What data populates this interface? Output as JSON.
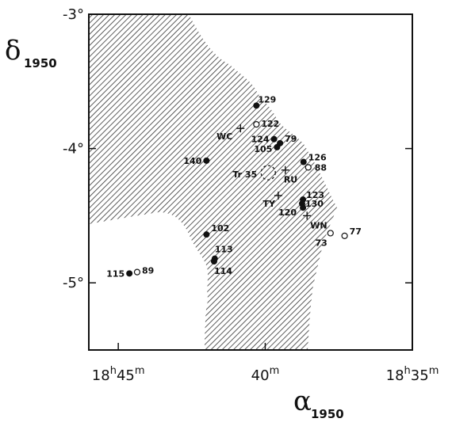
{
  "chart_data": {
    "type": "scatter",
    "xlabel": {
      "symbol": "α",
      "sub": "1950"
    },
    "ylabel": {
      "symbol": "δ",
      "sub": "1950"
    },
    "xlim": [
      18.7667,
      18.5833
    ],
    "ylim": [
      -5.5,
      -3.0
    ],
    "x_ticks": [
      {
        "value": 18.75,
        "h": "18",
        "hsup": "h",
        "m": "45",
        "msup": "m"
      },
      {
        "value": 18.6667,
        "h": "",
        "hsup": "",
        "m": "40",
        "msup": "m"
      },
      {
        "value": 18.5833,
        "h": "18",
        "hsup": "h",
        "m": "35",
        "msup": "m"
      }
    ],
    "y_ticks": [
      {
        "value": -3.0,
        "label": "-3°"
      },
      {
        "value": -4.0,
        "label": "-4°"
      },
      {
        "value": -5.0,
        "label": "-5°"
      }
    ],
    "region": "hatched obscured area (dark cloud)",
    "series": [
      {
        "marker": "filled-circle",
        "points": [
          {
            "label": "129",
            "x": 18.6717,
            "y": -3.68
          },
          {
            "label": "124",
            "x": 18.6617,
            "y": -3.93
          },
          {
            "label": "79",
            "x": 18.6583,
            "y": -3.96
          },
          {
            "label": "105",
            "x": 18.66,
            "y": -3.99
          },
          {
            "label": "140",
            "x": 18.7,
            "y": -4.09
          },
          {
            "label": "126",
            "x": 18.645,
            "y": -4.1
          },
          {
            "label": "123",
            "x": 18.6453,
            "y": -4.38
          },
          {
            "label": "130",
            "x": 18.6458,
            "y": -4.41
          },
          {
            "label": "120",
            "x": 18.6453,
            "y": -4.44
          },
          {
            "label": "102",
            "x": 18.7,
            "y": -4.64
          },
          {
            "label": "113",
            "x": 18.6953,
            "y": -4.82
          },
          {
            "label": "114",
            "x": 18.6957,
            "y": -4.84
          },
          {
            "label": "115",
            "x": 18.7437,
            "y": -4.93
          }
        ]
      },
      {
        "marker": "open-circle",
        "points": [
          {
            "label": "122",
            "x": 18.6717,
            "y": -3.82
          },
          {
            "label": "88",
            "x": 18.6423,
            "y": -4.14
          },
          {
            "label": "73",
            "x": 18.6297,
            "y": -4.63
          },
          {
            "label": "77",
            "x": 18.6217,
            "y": -4.65
          },
          {
            "label": "89",
            "x": 18.7393,
            "y": -4.92
          }
        ]
      },
      {
        "marker": "plus",
        "points": [
          {
            "label": "WC",
            "x": 18.6807,
            "y": -3.85
          },
          {
            "label": "RU",
            "x": 18.6553,
            "y": -4.16
          },
          {
            "label": "TY",
            "x": 18.6593,
            "y": -4.35
          },
          {
            "label": "WN",
            "x": 18.643,
            "y": -4.5
          }
        ]
      },
      {
        "marker": "dashed-circle",
        "points": [
          {
            "label": "Tr 35",
            "x": 18.665,
            "y": -4.18
          }
        ]
      }
    ]
  }
}
